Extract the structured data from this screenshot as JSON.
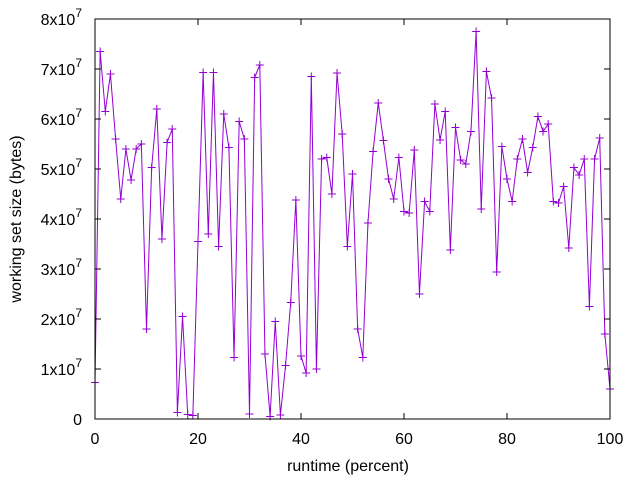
{
  "chart_data": {
    "type": "line",
    "title": "",
    "xlabel": "runtime (percent)",
    "ylabel": "working set size (bytes)",
    "xlim": [
      0,
      100
    ],
    "ylim": [
      0,
      80000000
    ],
    "grid": false,
    "legend": "none",
    "line_color": "#9400d3",
    "marker": "plus",
    "x_ticks": [
      {
        "value": 0,
        "label": "0"
      },
      {
        "value": 20,
        "label": "20"
      },
      {
        "value": 40,
        "label": "40"
      },
      {
        "value": 60,
        "label": "60"
      },
      {
        "value": 80,
        "label": "80"
      },
      {
        "value": 100,
        "label": "100"
      }
    ],
    "y_ticks": [
      {
        "value": 0,
        "label": "0"
      },
      {
        "value": 10000000,
        "mantissa": "1x10",
        "exp": "7"
      },
      {
        "value": 20000000,
        "mantissa": "2x10",
        "exp": "7"
      },
      {
        "value": 30000000,
        "mantissa": "3x10",
        "exp": "7"
      },
      {
        "value": 40000000,
        "mantissa": "4x10",
        "exp": "7"
      },
      {
        "value": 50000000,
        "mantissa": "5x10",
        "exp": "7"
      },
      {
        "value": 60000000,
        "mantissa": "6x10",
        "exp": "7"
      },
      {
        "value": 70000000,
        "mantissa": "7x10",
        "exp": "7"
      },
      {
        "value": 80000000,
        "mantissa": "8x10",
        "exp": "7"
      }
    ],
    "series": [
      {
        "x": [
          0,
          1,
          2,
          3,
          4,
          5,
          6,
          7,
          8,
          9,
          10,
          11,
          12,
          13,
          14,
          15,
          16,
          17,
          18,
          19,
          20,
          21,
          22,
          23,
          24,
          25,
          26,
          27,
          28,
          29,
          30,
          31,
          32,
          33,
          34,
          35,
          36,
          37,
          38,
          39,
          40,
          41,
          42,
          43,
          44,
          45,
          46,
          47,
          48,
          49,
          50,
          51,
          52,
          53,
          54,
          55,
          56,
          57,
          58,
          59,
          60,
          61,
          62,
          63,
          64,
          65,
          66,
          67,
          68,
          69,
          70,
          71,
          72,
          73,
          74,
          75,
          76,
          77,
          78,
          79,
          80,
          81,
          82,
          83,
          84,
          85,
          86,
          87,
          88,
          89,
          90,
          91,
          92,
          93,
          94,
          95,
          96,
          97,
          98,
          99,
          100
        ],
        "y": [
          7300000,
          73500000,
          61500000,
          69000000,
          56000000,
          44000000,
          54000000,
          47800000,
          54000000,
          55000000,
          18000000,
          50300000,
          62000000,
          36000000,
          55300000,
          58000000,
          1300000,
          20500000,
          900000,
          700000,
          35500000,
          69300000,
          37000000,
          69300000,
          34500000,
          61000000,
          54300000,
          12300000,
          59500000,
          56000000,
          1000000,
          68300000,
          70800000,
          13000000,
          500000,
          19500000,
          800000,
          10700000,
          23300000,
          43800000,
          12600000,
          9200000,
          68500000,
          10000000,
          52000000,
          52300000,
          45000000,
          69200000,
          57000000,
          34500000,
          49000000,
          18000000,
          12300000,
          39200000,
          53500000,
          63200000,
          55700000,
          48000000,
          44000000,
          52300000,
          41500000,
          41200000,
          53800000,
          25000000,
          43500000,
          41500000,
          63000000,
          55800000,
          61500000,
          33800000,
          58300000,
          51800000,
          51000000,
          57500000,
          77500000,
          42000000,
          69500000,
          64200000,
          29400000,
          54500000,
          48000000,
          43500000,
          52000000,
          56000000,
          49300000,
          54300000,
          60500000,
          57500000,
          59000000,
          43500000,
          43200000,
          46500000,
          34200000,
          50300000,
          48800000,
          52000000,
          22500000,
          52000000,
          56200000,
          17000000,
          6000000
        ]
      }
    ]
  }
}
